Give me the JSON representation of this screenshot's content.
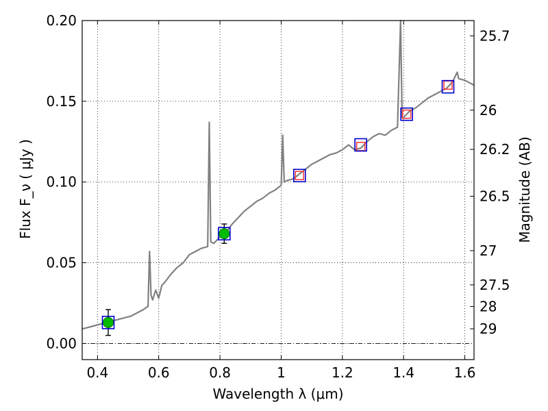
{
  "chart_data": {
    "type": "line",
    "xlabel": "Wavelength  λ (μm)",
    "ylabel": "Flux  F_ν  ( μJy )",
    "ylabel_right": "Magnitude (AB)",
    "xlim": [
      0.35,
      1.63
    ],
    "ylim": [
      -0.01,
      0.2
    ],
    "x_ticks": [
      0.4,
      0.6,
      0.8,
      1.0,
      1.2,
      1.4,
      1.6
    ],
    "x_tick_labels": [
      "0.4",
      "0.6",
      "0.8",
      "1",
      "1.2",
      "1.4",
      "1.6"
    ],
    "y_ticks": [
      0.0,
      0.05,
      0.1,
      0.15,
      0.2
    ],
    "y_tick_labels": [
      "0.00",
      "0.05",
      "0.10",
      "0.15",
      "0.20"
    ],
    "magnitude_ticks": [
      {
        "label": "25.7",
        "flux": 0.1905
      },
      {
        "label": "26",
        "flux": 0.1445
      },
      {
        "label": "26.2",
        "flux": 0.1202
      },
      {
        "label": "26.5",
        "flux": 0.0912
      },
      {
        "label": "27",
        "flux": 0.0575
      },
      {
        "label": "27.5",
        "flux": 0.0363
      },
      {
        "label": "28",
        "flux": 0.0229
      },
      {
        "label": "29",
        "flux": 0.0091
      }
    ],
    "grid": true,
    "zero_line": true,
    "series": [
      {
        "kind": "spectrum",
        "color": "#808080",
        "x": [
          0.35,
          0.37,
          0.39,
          0.41,
          0.43,
          0.45,
          0.47,
          0.49,
          0.51,
          0.53,
          0.55,
          0.565,
          0.57,
          0.575,
          0.58,
          0.59,
          0.6,
          0.61,
          0.62,
          0.64,
          0.66,
          0.68,
          0.7,
          0.72,
          0.74,
          0.76,
          0.765,
          0.77,
          0.78,
          0.8,
          0.82,
          0.84,
          0.86,
          0.88,
          0.9,
          0.92,
          0.94,
          0.96,
          0.98,
          1.0,
          1.005,
          1.01,
          1.02,
          1.04,
          1.06,
          1.08,
          1.1,
          1.12,
          1.14,
          1.16,
          1.18,
          1.2,
          1.22,
          1.24,
          1.26,
          1.28,
          1.3,
          1.32,
          1.34,
          1.36,
          1.38,
          1.39,
          1.395,
          1.4,
          1.41,
          1.42,
          1.44,
          1.46,
          1.48,
          1.5,
          1.52,
          1.54,
          1.56,
          1.575,
          1.58,
          1.6,
          1.63
        ],
        "y": [
          0.009,
          0.01,
          0.011,
          0.012,
          0.013,
          0.014,
          0.015,
          0.016,
          0.017,
          0.019,
          0.021,
          0.023,
          0.057,
          0.03,
          0.027,
          0.033,
          0.028,
          0.036,
          0.038,
          0.043,
          0.047,
          0.05,
          0.055,
          0.057,
          0.059,
          0.06,
          0.137,
          0.063,
          0.062,
          0.066,
          0.069,
          0.074,
          0.078,
          0.082,
          0.085,
          0.088,
          0.09,
          0.093,
          0.095,
          0.098,
          0.129,
          0.1,
          0.101,
          0.102,
          0.105,
          0.108,
          0.111,
          0.113,
          0.115,
          0.117,
          0.118,
          0.12,
          0.123,
          0.12,
          0.121,
          0.125,
          0.128,
          0.13,
          0.129,
          0.132,
          0.134,
          0.2,
          0.14,
          0.14,
          0.142,
          0.144,
          0.146,
          0.149,
          0.152,
          0.154,
          0.156,
          0.158,
          0.162,
          0.168,
          0.164,
          0.163,
          0.16
        ]
      },
      {
        "kind": "photometry",
        "marker": "circle",
        "color": "#00bb00",
        "x": [
          0.435,
          0.814
        ],
        "y": [
          0.013,
          0.068
        ],
        "yerr": [
          0.008,
          0.006
        ]
      },
      {
        "kind": "model-boxes",
        "marker": "square",
        "color": "#0000cc",
        "x": [
          0.435,
          0.814,
          1.06,
          1.26,
          1.41,
          1.545
        ],
        "y": [
          0.013,
          0.068,
          0.104,
          0.123,
          0.142,
          0.159
        ]
      },
      {
        "kind": "upper-markers",
        "marker": "square",
        "color": "#ff3333",
        "x": [
          1.06,
          1.26,
          1.41,
          1.545
        ],
        "y": [
          0.104,
          0.122,
          0.142,
          0.16
        ]
      }
    ]
  }
}
